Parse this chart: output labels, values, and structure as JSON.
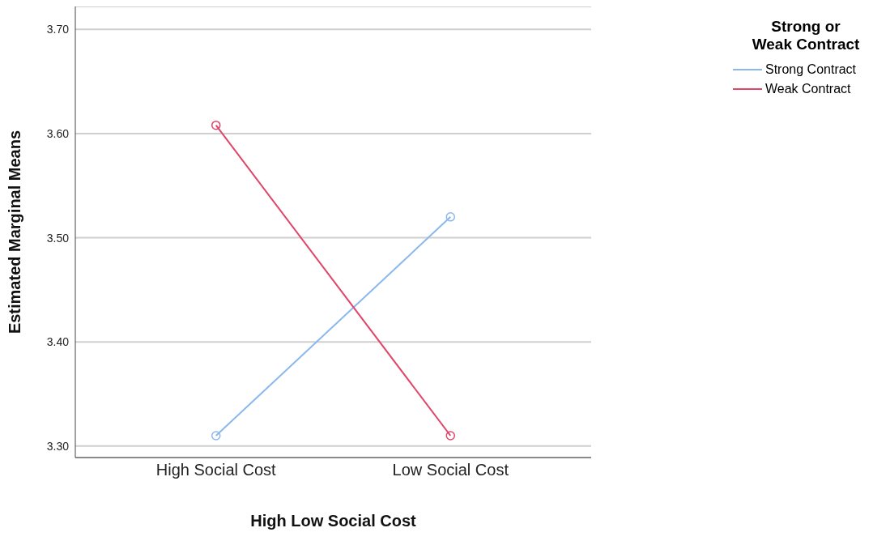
{
  "chart_data": {
    "type": "line",
    "xlabel": "High Low Social Cost",
    "ylabel": "Estimated Marginal Means",
    "legend_title": "Strong or Weak Contract",
    "categories": [
      "High Social Cost",
      "Low Social Cost"
    ],
    "series": [
      {
        "name": "Strong Contract",
        "color": "#8ab8ee",
        "values": [
          3.31,
          3.52
        ]
      },
      {
        "name": "Weak Contract",
        "color": "#e0466a",
        "values": [
          3.608,
          3.31
        ]
      }
    ],
    "ylim": [
      3.289,
      3.722
    ],
    "yticks": [
      {
        "value": 3.3,
        "label": "3.30"
      },
      {
        "value": 3.4,
        "label": "3.40"
      },
      {
        "value": 3.5,
        "label": "3.50"
      },
      {
        "value": 3.6,
        "label": "3.60"
      },
      {
        "value": 3.7,
        "label": "3.70"
      }
    ],
    "grid": "y",
    "legend": "top right",
    "marker": "circle",
    "line_style": "solid"
  }
}
